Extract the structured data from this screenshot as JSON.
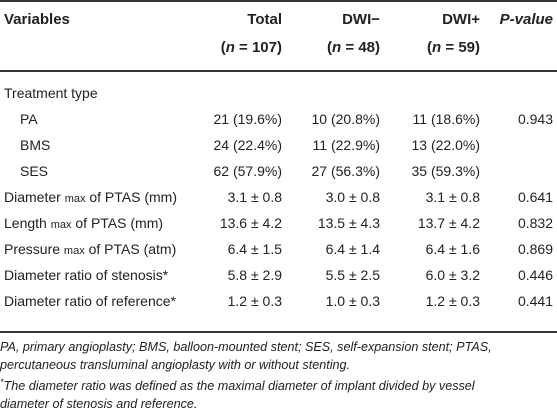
{
  "header": {
    "variables": "Variables",
    "total": "Total",
    "total_n": "(n = 107)",
    "dwi_neg": "DWI−",
    "dwi_neg_n": "(n = 48)",
    "dwi_pos": "DWI+",
    "dwi_pos_n": "(n = 59)",
    "p_value": "P-value"
  },
  "section": "Treatment type",
  "rows": [
    {
      "label": "PA",
      "total": "21 (19.6%)",
      "neg": "10 (20.8%)",
      "pos": "11 (18.6%)",
      "p": "0.943"
    },
    {
      "label": "BMS",
      "total": "24 (22.4%)",
      "neg": "11 (22.9%)",
      "pos": "13 (22.0%)",
      "p": ""
    },
    {
      "label": "SES",
      "total": "62 (57.9%)",
      "neg": "27 (56.3%)",
      "pos": "35 (59.3%)",
      "p": ""
    },
    {
      "label_pre": "Diameter",
      "label_sub": "max",
      "label_post": "of PTAS (mm)",
      "total": "3.1 ± 0.8",
      "neg": "3.0 ± 0.8",
      "pos": "3.1 ± 0.8",
      "p": "0.641"
    },
    {
      "label_pre": "Length",
      "label_sub": "max",
      "label_post": "of PTAS (mm)",
      "total": "13.6 ± 4.2",
      "neg": "13.5 ± 4.3",
      "pos": "13.7 ± 4.2",
      "p": "0.832"
    },
    {
      "label_pre": "Pressure",
      "label_sub": "max",
      "label_post": "of PTAS (atm)",
      "total": "6.4 ± 1.5",
      "neg": "6.4 ± 1.4",
      "pos": "6.4 ± 1.6",
      "p": "0.869"
    },
    {
      "label": "Diameter ratio of stenosis*",
      "total": "5.8 ± 2.9",
      "neg": "5.5 ± 2.5",
      "pos": "6.0 ± 3.2",
      "p": "0.446"
    },
    {
      "label": "Diameter ratio of reference*",
      "total": "1.2 ± 0.3",
      "neg": "1.0 ± 0.3",
      "pos": "1.2 ± 0.3",
      "p": "0.441"
    }
  ],
  "footnotes": {
    "abbrev_line1": "PA, primary angioplasty; BMS, balloon-mounted stent; SES, self-expansion stent; PTAS,",
    "abbrev_line2": "percutaneous transluminal angioplasty with or without stenting.",
    "star_mark": "*",
    "star_line1": "The diameter ratio was defined as the maximal diameter of implant divided by vessel",
    "star_line2": "diameter of stenosis and reference."
  }
}
